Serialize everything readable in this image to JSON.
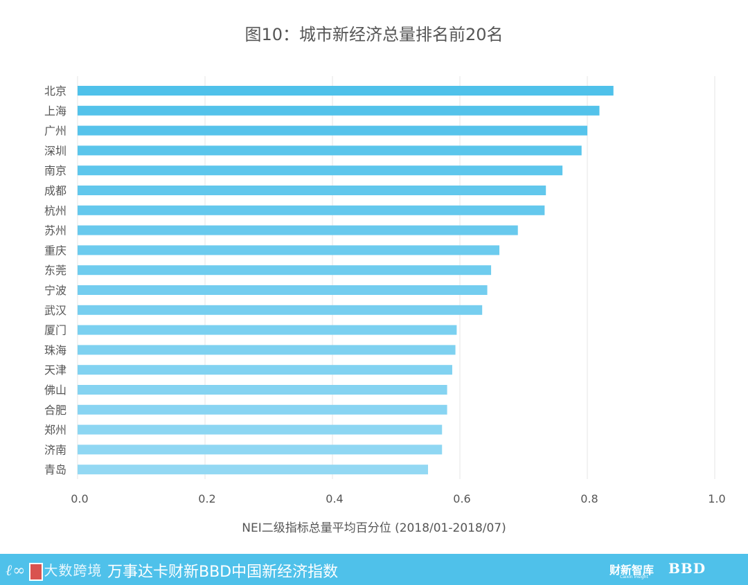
{
  "footer": {
    "left_brand": "大数跨境",
    "index_name": "万事达卡财新BBD中国新经济指数",
    "think_tank": "财新智库",
    "think_tank_sub": "Caixin Insight",
    "bbd": "BBD"
  },
  "colors": {
    "bar_top": "#4fc1ea",
    "bar_bottom": "#93d8f3",
    "grid": "#e6e6e6",
    "text": "#555555",
    "footer_bg": "#4fc1ea"
  },
  "chart_data": {
    "type": "bar",
    "orientation": "horizontal",
    "title": "图10：城市新经济总量排名前20名",
    "xlabel": "NEI二级指标总量平均百分位 (2018/01-2018/07)",
    "ylabel": "",
    "xlim": [
      0,
      1.0
    ],
    "xticks": [
      "0.0",
      "0.2",
      "0.4",
      "0.6",
      "0.8",
      "1.0"
    ],
    "grid": true,
    "categories": [
      "北京",
      "上海",
      "广州",
      "深圳",
      "南京",
      "成都",
      "杭州",
      "苏州",
      "重庆",
      "东莞",
      "宁波",
      "武汉",
      "厦门",
      "珠海",
      "天津",
      "佛山",
      "合肥",
      "郑州",
      "济南",
      "青岛"
    ],
    "values": [
      0.841,
      0.819,
      0.8,
      0.791,
      0.761,
      0.735,
      0.733,
      0.691,
      0.662,
      0.649,
      0.643,
      0.635,
      0.595,
      0.593,
      0.588,
      0.58,
      0.58,
      0.572,
      0.572,
      0.55
    ]
  }
}
